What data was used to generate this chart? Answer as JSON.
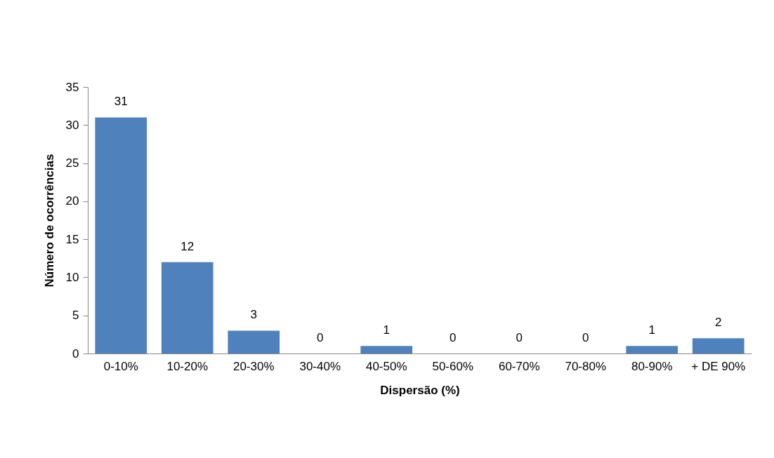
{
  "chart_data": {
    "type": "bar",
    "xlabel": "Dispersão (%)",
    "ylabel": "Número de ocorrências",
    "categories": [
      "0-10%",
      "10-20%",
      "20-30%",
      "30-40%",
      "40-50%",
      "50-60%",
      "60-70%",
      "70-80%",
      "80-90%",
      "+ DE 90%"
    ],
    "values": [
      31,
      12,
      3,
      0,
      1,
      0,
      0,
      0,
      1,
      2
    ],
    "color": "#4f81bd",
    "ylim": [
      0,
      35
    ],
    "yticks": [
      0,
      5,
      10,
      15,
      20,
      25,
      30,
      35
    ],
    "grid": false,
    "data_labels": true
  }
}
